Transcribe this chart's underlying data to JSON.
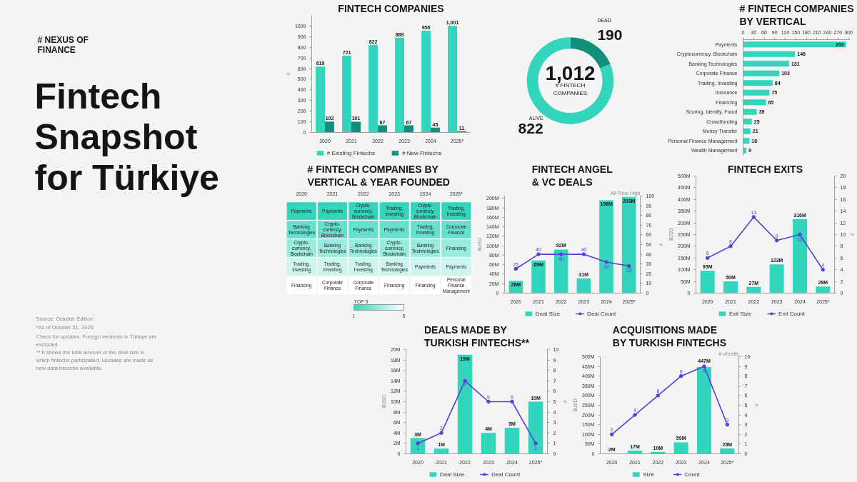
{
  "chart_data": [
    {
      "type": "other",
      "title": "Fintech Snapshot for Türkiye",
      "subtitle": "# NEXUS OF FINANCE",
      "annotations": [
        "Source: October Edition",
        "*As of October 31, 2025",
        "Check for updates. Foreign ventures in Türkiye are excluded.",
        "** It shows the total amount of the deal size in which fintechs participated. Updates are made as new data become available."
      ]
    },
    {
      "type": "bar",
      "title": "FINTECH COMPANIES",
      "ylabel": "#",
      "categories": [
        "2020",
        "2021",
        "2022",
        "2023",
        "2024",
        "2025*"
      ],
      "series": [
        {
          "name": "# Existing Fintechs",
          "color": "#33d6bd",
          "values": [
            619,
            721,
            822,
            889,
            956,
            1001
          ],
          "value_labels": [
            "619",
            "721",
            "822",
            "889",
            "956",
            "1,001"
          ]
        },
        {
          "name": "# New Fintechs",
          "color": "#108f7b",
          "values": [
            102,
            101,
            67,
            67,
            45,
            11
          ],
          "value_labels": [
            "102",
            "101",
            "67",
            "67",
            "45",
            "11"
          ]
        }
      ],
      "ylim": [
        0,
        1100
      ],
      "yticks": [
        0,
        100,
        200,
        300,
        400,
        500,
        600,
        700,
        800,
        900,
        1000
      ],
      "legend": "bottom"
    },
    {
      "type": "donut",
      "categories": [
        "DEAD",
        "ALIVE"
      ],
      "values": [
        190,
        822
      ],
      "colors": [
        "#108f7b",
        "#33d6bd"
      ],
      "value_labels": [
        "190",
        "822"
      ],
      "annotations": [
        "1,012",
        "# FINTECH COMPANIES"
      ]
    },
    {
      "type": "bar",
      "orientation": "horizontal",
      "title": "# FINTECH COMPANIES BY VERTICAL",
      "categories": [
        "Payments",
        "Cryptocurrency, Blockchain",
        "Banking Technologies",
        "Corporate Finance",
        "Trading, Investing",
        "Insurance",
        "Financing",
        "Scoring, Identity, Fraud",
        "Crowdfunding",
        "Money Transfer",
        "Personal Finance Management",
        "Wealth Management"
      ],
      "values": [
        293,
        148,
        131,
        103,
        84,
        75,
        65,
        39,
        25,
        21,
        18,
        9
      ],
      "color": "#33d6bd",
      "xlim": [
        0,
        305
      ],
      "xticks": [
        0,
        30,
        60,
        90,
        120,
        150,
        180,
        210,
        240,
        270,
        300
      ],
      "data_labels": true
    },
    {
      "type": "heatmap",
      "title": "# FINTECH COMPANIES BY VERTICAL & YEAR FOUNDED",
      "categories": [
        "2020",
        "2021",
        "2022",
        "2023",
        "2024",
        "2025*"
      ],
      "y_categories": [
        null,
        null,
        null,
        null,
        null
      ],
      "cells": [
        [
          1,
          1,
          1,
          1,
          1,
          1
        ],
        [
          2,
          2,
          2,
          2,
          2,
          2
        ],
        [
          3,
          3,
          3,
          3,
          3,
          3
        ],
        [
          4,
          4,
          4,
          4,
          4,
          4
        ],
        [
          5,
          5,
          5,
          5,
          5,
          5
        ]
      ],
      "cell_labels": [
        [
          "Payments",
          "Payments",
          "Crypto-\ncurrency,\nBlockchain",
          "Trading,\nInvesting",
          "Crypto-\ncurrency,\nBlockchain",
          "Trading,\nInvesting"
        ],
        [
          "Banking\nTechnologies",
          "Crypto-\ncurrency,\nBlockchain",
          "Payments",
          "Payments",
          "Trading,\nInvesting",
          "Corporate\nFinance"
        ],
        [
          "Crypto-\ncurrency,\nBlockchain",
          "Banking\nTechnologies",
          "Banking\nTechnologies",
          "Crypto-\ncurrency,\nBlockchain",
          "Banking\nTechnologies",
          "Financing"
        ],
        [
          "Trading,\nInvesting",
          "Trading,\nInvesting",
          "Trading,\nInvesting",
          "Banking\nTechnologies",
          "Payments",
          "Payments"
        ],
        [
          "Financing",
          "Corporate\nFinance",
          "Corporate\nFinance",
          "Financing",
          "Financing",
          "Personal\nFinance\nManagement"
        ]
      ],
      "clim": [
        1,
        5
      ],
      "cticks": [
        1,
        5
      ],
      "clabel": "TOP 5",
      "tick_labels": "x"
    },
    {
      "type": "bar",
      "title": "FINTECH ANGEL & VC DEALS",
      "ylabel": "$USD",
      "y2label": "#",
      "categories": [
        "2020",
        "2021",
        "2022",
        "2023",
        "2024",
        "2025*"
      ],
      "series": [
        {
          "name": "Deal Size",
          "color": "#33d6bd",
          "values": [
            26,
            69,
            92,
            31,
            196,
            203
          ],
          "value_labels": [
            "26M",
            "69M",
            "92M",
            "31M",
            "196M",
            "203M"
          ]
        },
        {
          "name": "Deal Count",
          "type": "line",
          "axis": "y2",
          "color": "#5a3fd6",
          "values": [
            25,
            40,
            40,
            40,
            32,
            28
          ],
          "value_labels": [
            "25",
            "40",
            "40",
            "40",
            "32",
            "28"
          ]
        }
      ],
      "ylim": [
        0,
        205
      ],
      "yticks": [
        0,
        {
          "value": 20,
          "label": "20M"
        },
        {
          "value": 40,
          "label": "40M"
        },
        {
          "value": 60,
          "label": "60M"
        },
        {
          "value": 80,
          "label": "80M"
        },
        {
          "value": 100,
          "label": "100M"
        },
        {
          "value": 120,
          "label": "120M"
        },
        {
          "value": 140,
          "label": "140M"
        },
        {
          "value": 160,
          "label": "160M"
        },
        {
          "value": 180,
          "label": "180M"
        },
        {
          "value": 200,
          "label": "200M"
        }
      ],
      "y2lim": [
        0,
        100
      ],
      "y2ticks": [
        0,
        10,
        20,
        30,
        40,
        50,
        60,
        70,
        80,
        90,
        100
      ],
      "marker": "circle",
      "legend": "bottom",
      "annotations": [
        "All-Time High"
      ]
    },
    {
      "type": "bar",
      "title": "FINTECH EXITS",
      "ylabel": "$USD",
      "y2label": "#",
      "categories": [
        "2020",
        "2021",
        "2022",
        "2023",
        "2024",
        "2025*"
      ],
      "series": [
        {
          "name": "Exit Size",
          "color": "#33d6bd",
          "values": [
            95,
            50,
            27,
            123,
            316,
            28
          ],
          "value_labels": [
            "95M",
            "50M",
            "27M",
            "123M",
            "316M",
            "28M"
          ]
        },
        {
          "name": "Exit Count",
          "type": "line",
          "axis": "y2",
          "color": "#5a3fd6",
          "values": [
            6,
            8,
            13,
            9,
            10,
            4
          ],
          "value_labels": [
            "6",
            "8",
            "13",
            "9",
            "10",
            "4"
          ]
        }
      ],
      "ylim": [
        0,
        500
      ],
      "yticks": [
        0,
        {
          "value": 50,
          "label": "50M"
        },
        {
          "value": 100,
          "label": "100M"
        },
        {
          "value": 150,
          "label": "150M"
        },
        {
          "value": 200,
          "label": "200M"
        },
        {
          "value": 250,
          "label": "250M"
        },
        {
          "value": 300,
          "label": "300M"
        },
        {
          "value": 350,
          "label": "350M"
        },
        {
          "value": 400,
          "label": "400M"
        },
        {
          "value": 450,
          "label": "450M"
        },
        {
          "value": 500,
          "label": "500M"
        }
      ],
      "y2lim": [
        0,
        20
      ],
      "y2ticks": [
        0,
        2,
        4,
        6,
        8,
        10,
        12,
        14,
        16,
        18,
        20
      ],
      "marker": "circle",
      "legend": "bottom"
    },
    {
      "type": "bar",
      "title": "DEALS MADE BY TURKISH FINTECHS**",
      "ylabel": "$USD",
      "y2label": "#",
      "categories": [
        "2020",
        "2021",
        "2022",
        "2023",
        "2024",
        "2025*"
      ],
      "series": [
        {
          "name": "Deal Size",
          "color": "#33d6bd",
          "values": [
            3,
            1,
            19,
            4,
            5,
            10
          ],
          "value_labels": [
            "3M",
            "1M",
            "19M",
            "4M",
            "5M",
            "10M"
          ]
        },
        {
          "name": "Deal Count",
          "type": "line",
          "axis": "y2",
          "color": "#5a3fd6",
          "values": [
            1,
            2,
            7,
            5,
            5,
            1
          ],
          "value_labels": [
            "1",
            "2",
            "7",
            "5",
            "5",
            "1"
          ]
        }
      ],
      "ylim": [
        0,
        20
      ],
      "yticks": [
        0,
        {
          "value": 2,
          "label": "2M"
        },
        {
          "value": 4,
          "label": "4M"
        },
        {
          "value": 6,
          "label": "6M"
        },
        {
          "value": 8,
          "label": "8M"
        },
        {
          "value": 10,
          "label": "10M"
        },
        {
          "value": 12,
          "label": "12M"
        },
        {
          "value": 14,
          "label": "14M"
        },
        {
          "value": 16,
          "label": "16M"
        },
        {
          "value": 18,
          "label": "18M"
        },
        {
          "value": 20,
          "label": "20M"
        }
      ],
      "y2lim": [
        0,
        10
      ],
      "y2ticks": [
        0,
        1,
        2,
        3,
        4,
        5,
        6,
        7,
        8,
        9,
        10
      ],
      "marker": "circle",
      "legend": "bottom"
    },
    {
      "type": "bar",
      "title": "ACQUISITIONS MADE BY TURKISH FINTECHS",
      "ylabel": "$USD",
      "y2label": "#",
      "categories": [
        "2020",
        "2021",
        "2022",
        "2023",
        "2024",
        "2025*"
      ],
      "series": [
        {
          "name": "Size",
          "color": "#33d6bd",
          "values": [
            2,
            17,
            10,
            59,
            447,
            28
          ],
          "value_labels": [
            "2M",
            "17M",
            "10M",
            "59M",
            "447M",
            "28M"
          ]
        },
        {
          "name": "Count",
          "type": "line",
          "axis": "y2",
          "color": "#5a3fd6",
          "values": [
            2,
            4,
            6,
            8,
            9,
            3
          ],
          "value_labels": [
            "2",
            "4",
            "6",
            "8",
            "9",
            "3"
          ]
        }
      ],
      "ylim": [
        0,
        500
      ],
      "yticks": [
        0,
        {
          "value": 50,
          "label": "50M"
        },
        {
          "value": 100,
          "label": "100M"
        },
        {
          "value": 150,
          "label": "150M"
        },
        {
          "value": 200,
          "label": "200M"
        },
        {
          "value": 250,
          "label": "250M"
        },
        {
          "value": 300,
          "label": "300M"
        },
        {
          "value": 350,
          "label": "350M"
        },
        {
          "value": 400,
          "label": "400M"
        },
        {
          "value": 450,
          "label": "450M"
        },
        {
          "value": 500,
          "label": "500M"
        }
      ],
      "y2lim": [
        0,
        10
      ],
      "y2ticks": [
        0,
        1,
        2,
        3,
        4,
        5,
        6,
        7,
        8,
        9,
        10
      ],
      "marker": "circle",
      "legend": "bottom",
      "annotations": [
        "# of exits"
      ]
    }
  ]
}
